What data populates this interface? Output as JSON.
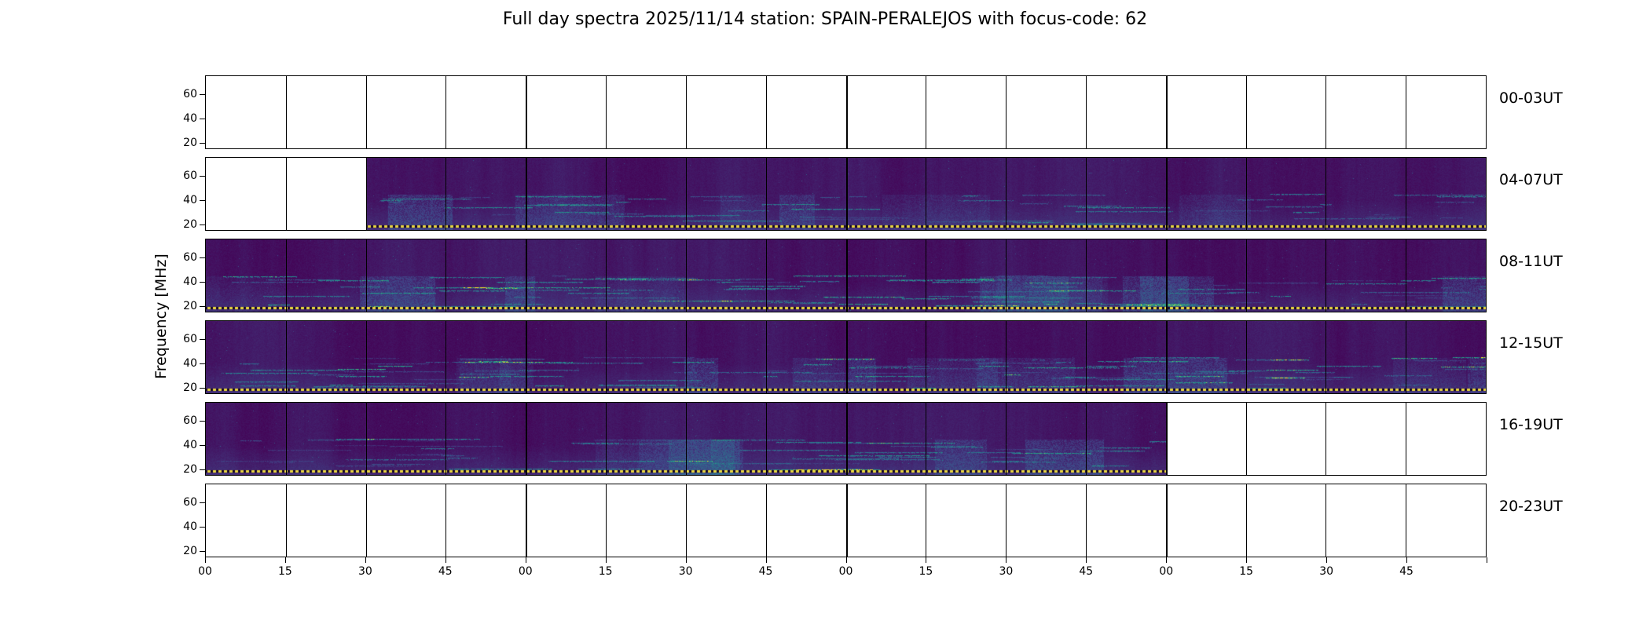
{
  "title": "Full day spectra 2025/11/14 station: SPAIN-PERALEJOS with focus-code: 62",
  "ylabel": "Frequency [MHz]",
  "chart_data": {
    "type": "heatmap",
    "description": "Full-day dynamic radio spectrogram shown as six 4-hour strips; purple/viridis filled regions are recorded spectra, white regions are missing data, dotted yellow marker line near 20 MHz",
    "rows": [
      {
        "label": "00-03UT",
        "coverage_start": null,
        "coverage_end": null,
        "activity_level": null
      },
      {
        "label": "04-07UT",
        "coverage_start": 0.125,
        "coverage_end": 1.0,
        "activity_level": 0.9
      },
      {
        "label": "08-11UT",
        "coverage_start": 0.0,
        "coverage_end": 1.0,
        "activity_level": 1.25
      },
      {
        "label": "12-15UT",
        "coverage_start": 0.0,
        "coverage_end": 1.0,
        "activity_level": 1.35
      },
      {
        "label": "16-19UT",
        "coverage_start": 0.0,
        "coverage_end": 0.75,
        "activity_level": 1.0
      },
      {
        "label": "20-23UT",
        "coverage_start": null,
        "coverage_end": null,
        "activity_level": null
      }
    ],
    "y_ticks": [
      "60",
      "40",
      "20"
    ],
    "y_tick_values": [
      60,
      40,
      20
    ],
    "ylim": [
      15,
      75
    ],
    "x_tick_labels": [
      "00",
      "15",
      "30",
      "45",
      "00",
      "15",
      "30",
      "45",
      "00",
      "15",
      "30",
      "45",
      "00",
      "15",
      "30",
      "45"
    ],
    "segments_per_row": 16,
    "colors": {
      "background_low": "#440154",
      "mid_blue": "#414487",
      "signal_teal": "#2a788e",
      "signal_green": "#22a884",
      "signal_peak": "#fde725",
      "marker_yellow": "#ead73e",
      "empty": "#ffffff",
      "grid": "#000000"
    }
  }
}
